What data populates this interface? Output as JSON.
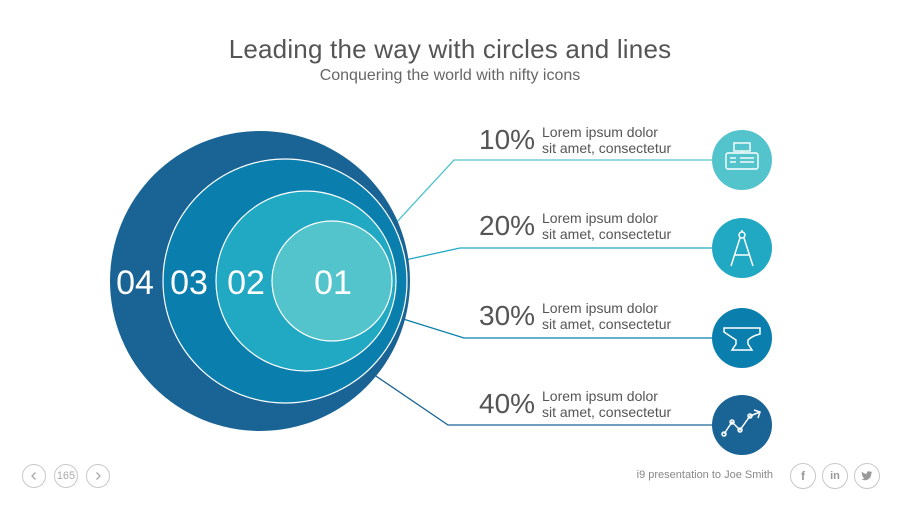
{
  "slide": {
    "title": "Leading the way with circles and lines",
    "subtitle": "Conquering the world with nifty icons"
  },
  "circles": [
    {
      "label": "04",
      "color": "#1a6395"
    },
    {
      "label": "03",
      "color": "#0a7fae"
    },
    {
      "label": "02",
      "color": "#21a8c3"
    },
    {
      "label": "01",
      "color": "#53c4cc"
    }
  ],
  "items": [
    {
      "percent": "10%",
      "line1": "Lorem ipsum dolor",
      "line2": "sit amet, consectetur",
      "icon": "cash-register-icon",
      "color": "#53c4cc"
    },
    {
      "percent": "20%",
      "line1": "Lorem ipsum dolor",
      "line2": "sit amet, consectetur",
      "icon": "compass-icon",
      "color": "#21a8c3"
    },
    {
      "percent": "30%",
      "line1": "Lorem ipsum dolor",
      "line2": "sit amet, consectetur",
      "icon": "anvil-icon",
      "color": "#0a7fae"
    },
    {
      "percent": "40%",
      "line1": "Lorem ipsum dolor",
      "line2": "sit amet, consectetur",
      "icon": "trend-chart-icon",
      "color": "#1a6395"
    }
  ],
  "footer": {
    "page_number": "165",
    "prev_icon": "chevron-left-icon",
    "next_icon": "chevron-right-icon",
    "presentation_text": "i9 presentation to Joe Smith",
    "social": [
      {
        "icon": "facebook-icon",
        "glyph": "f"
      },
      {
        "icon": "linkedin-icon",
        "glyph": "in"
      },
      {
        "icon": "twitter-icon",
        "glyph": "🐦"
      }
    ]
  }
}
